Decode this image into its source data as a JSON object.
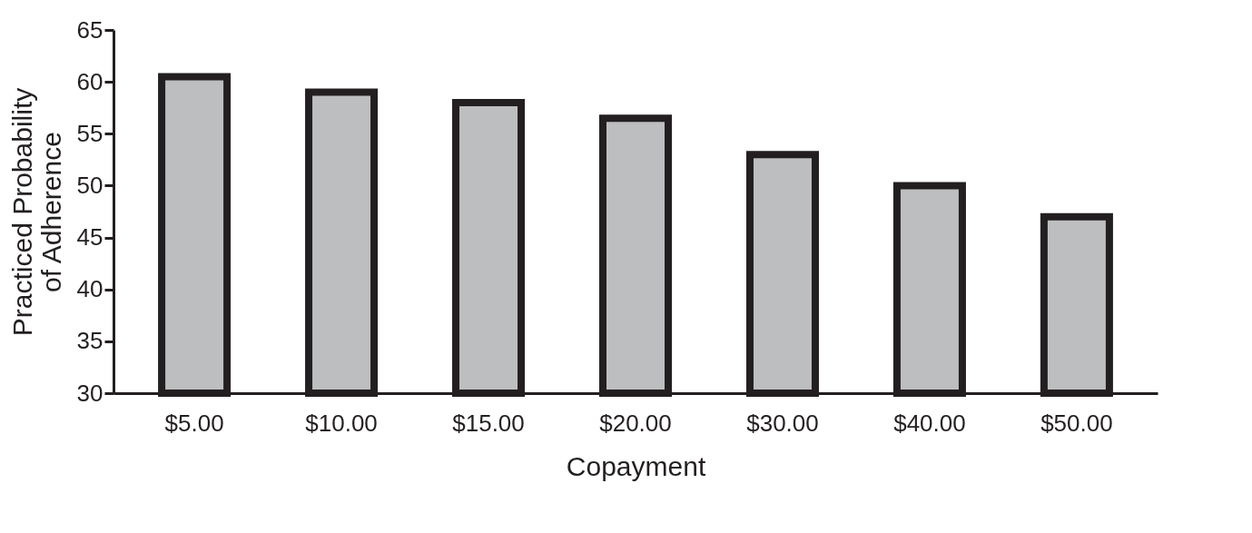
{
  "chart_data": {
    "type": "bar",
    "xlabel": "Copayment",
    "ylabel": "Practiced Probability of Adherence",
    "categories": [
      "$5.00",
      "$10.00",
      "$15.00",
      "$20.00",
      "$30.00",
      "$40.00",
      "$50.00"
    ],
    "values": [
      60.5,
      59,
      58,
      56.5,
      53,
      50,
      47
    ],
    "color": "#bdbec0",
    "ylim": [
      30,
      65
    ],
    "yticks": [
      30,
      35,
      40,
      45,
      50,
      55,
      60,
      65
    ],
    "grid": false
  }
}
